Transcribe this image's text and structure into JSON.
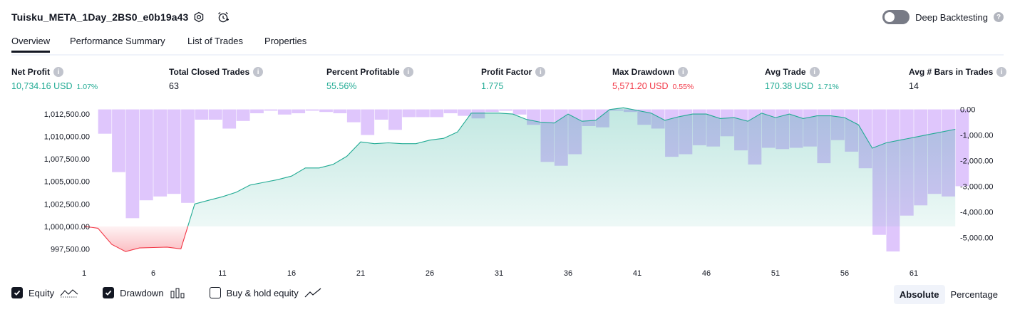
{
  "header": {
    "strategy_title": "Tuisku_META_1Day_2BS0_e0b19a43",
    "settings_icon": "gear-icon",
    "alert_icon": "alarm-clock-icon",
    "deep_backtesting_label": "Deep Backtesting",
    "deep_backtesting_enabled": false
  },
  "tabs": [
    {
      "label": "Overview",
      "active": true
    },
    {
      "label": "Performance Summary",
      "active": false
    },
    {
      "label": "List of Trades",
      "active": false
    },
    {
      "label": "Properties",
      "active": false
    }
  ],
  "metrics": [
    {
      "label": "Net Profit",
      "value": "10,734.16 USD",
      "pct": "1.07%",
      "tone": "green"
    },
    {
      "label": "Total Closed Trades",
      "value": "63",
      "pct": "",
      "tone": "dark"
    },
    {
      "label": "Percent Profitable",
      "value": "55.56%",
      "pct": "",
      "tone": "green"
    },
    {
      "label": "Profit Factor",
      "value": "1.775",
      "pct": "",
      "tone": "green"
    },
    {
      "label": "Max Drawdown",
      "value": "5,571.20 USD",
      "pct": "0.55%",
      "tone": "red"
    },
    {
      "label": "Avg Trade",
      "value": "170.38 USD",
      "pct": "1.71%",
      "tone": "green"
    },
    {
      "label": "Avg # Bars in Trades",
      "value": "14",
      "pct": "",
      "tone": "dark"
    }
  ],
  "legend": {
    "equity": {
      "label": "Equity",
      "checked": true,
      "icon": "equity-line-icon"
    },
    "drawdown": {
      "label": "Drawdown",
      "checked": true,
      "icon": "drawdown-bars-icon"
    },
    "buy_hold": {
      "label": "Buy & hold equity",
      "checked": false,
      "icon": "buy-hold-line-icon"
    }
  },
  "view_mode": {
    "absolute_label": "Absolute",
    "percentage_label": "Percentage",
    "selected": "Absolute"
  },
  "colors": {
    "profit": "#22ab94",
    "loss": "#f23645",
    "drawdown_bar": "#d9bcfc",
    "equity_fill": "#cdeee4"
  },
  "chart_data": {
    "type": "area",
    "x_ticks": [
      "1",
      "6",
      "11",
      "16",
      "21",
      "26",
      "31",
      "36",
      "41",
      "46",
      "51",
      "56",
      "61"
    ],
    "y_left_ticks": [
      "1,012,500.00",
      "1,010,000.00",
      "1,007,500.00",
      "1,005,000.00",
      "1,002,500.00",
      "1,000,000.00",
      "997,500.00"
    ],
    "y_right_ticks": [
      "0.00",
      "-1,000.00",
      "-2,000.00",
      "-3,000.00",
      "-4,000.00",
      "-5,000.00"
    ],
    "left_axis_range": [
      996500,
      1013300
    ],
    "right_axis_range": [
      -5800,
      100
    ],
    "baseline": 1000000,
    "series": [
      {
        "name": "Equity",
        "x": [
          1,
          2,
          3,
          4,
          5,
          6,
          7,
          8,
          9,
          10,
          11,
          12,
          13,
          14,
          15,
          16,
          17,
          18,
          19,
          20,
          21,
          22,
          23,
          24,
          25,
          26,
          27,
          28,
          29,
          30,
          31,
          32,
          33,
          34,
          35,
          36,
          37,
          38,
          39,
          40,
          41,
          42,
          43,
          44,
          45,
          46,
          47,
          48,
          49,
          50,
          51,
          52,
          53,
          54,
          55,
          56,
          57,
          58,
          59,
          60,
          61,
          62,
          63,
          64
        ],
        "values": [
          1000000,
          999800,
          998000,
          997200,
          997600,
          997650,
          997700,
          997500,
          1002500,
          1002900,
          1003300,
          1003800,
          1004600,
          1004900,
          1005200,
          1005600,
          1006500,
          1006500,
          1006900,
          1007800,
          1009400,
          1009200,
          1009300,
          1009200,
          1009200,
          1009600,
          1009800,
          1010500,
          1012600,
          1012600,
          1012600,
          1012500,
          1011900,
          1011600,
          1011500,
          1012500,
          1011700,
          1011800,
          1013000,
          1013200,
          1012900,
          1012600,
          1011800,
          1012200,
          1012500,
          1012500,
          1012000,
          1012100,
          1011700,
          1012600,
          1012100,
          1012500,
          1012000,
          1012300,
          1012300,
          1012100,
          1011300,
          1008700,
          1009300,
          1009600,
          1009900,
          1010200,
          1010500,
          1010800
        ]
      },
      {
        "name": "Drawdown",
        "x": [
          1,
          2,
          3,
          4,
          5,
          6,
          7,
          8,
          9,
          10,
          11,
          12,
          13,
          14,
          15,
          16,
          17,
          18,
          19,
          20,
          21,
          22,
          23,
          24,
          25,
          26,
          27,
          28,
          29,
          30,
          31,
          32,
          33,
          34,
          35,
          36,
          37,
          38,
          39,
          40,
          41,
          42,
          43,
          44,
          45,
          46,
          47,
          48,
          49,
          50,
          51,
          52,
          53,
          54,
          55,
          56,
          57,
          58,
          59,
          60,
          61,
          62,
          63,
          64
        ],
        "values": [
          0,
          -950,
          -2450,
          -4250,
          -3550,
          -3400,
          -3300,
          -3650,
          -400,
          -400,
          -750,
          -450,
          -150,
          -50,
          -200,
          -150,
          -50,
          -100,
          -150,
          -500,
          -1000,
          -400,
          -800,
          -300,
          -300,
          -300,
          -150,
          -250,
          -350,
          -100,
          -50,
          -200,
          -600,
          -2050,
          -2200,
          -1750,
          -650,
          -700,
          -50,
          -100,
          -600,
          -750,
          -1850,
          -1750,
          -1400,
          -1450,
          -1050,
          -1600,
          -2150,
          -1500,
          -1550,
          -1500,
          -1450,
          -2100,
          -1200,
          -1650,
          -2300,
          -4900,
          -5550,
          -4150,
          -3750,
          -3300,
          -3400,
          -3000
        ]
      }
    ]
  }
}
